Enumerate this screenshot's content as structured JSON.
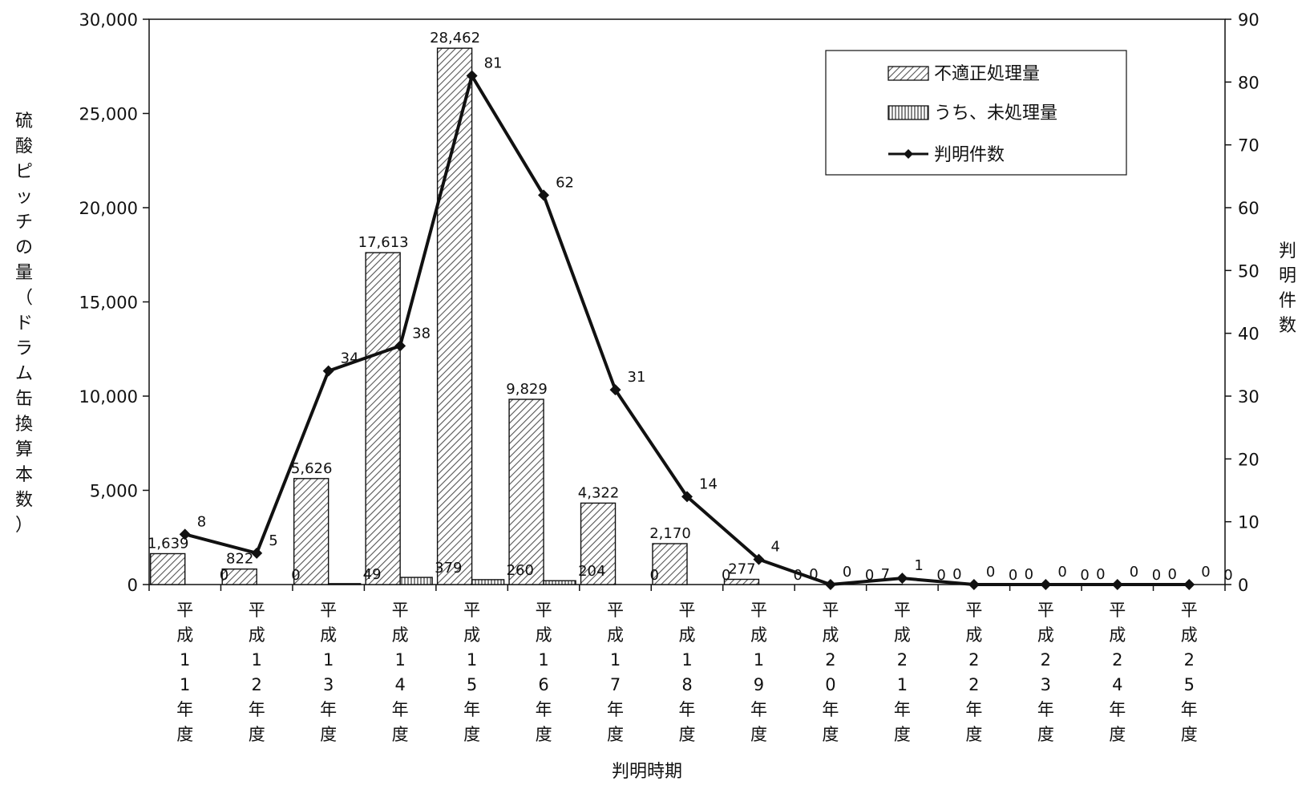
{
  "chart_data": {
    "type": "bar",
    "categories": [
      "平成11年度",
      "平成12年度",
      "平成13年度",
      "平成14年度",
      "平成15年度",
      "平成16年度",
      "平成17年度",
      "平成18年度",
      "平成19年度",
      "平成20年度",
      "平成21年度",
      "平成22年度",
      "平成23年度",
      "平成24年度",
      "平成25年度"
    ],
    "series": [
      {
        "name": "不適正処理量",
        "type": "bar",
        "axis": "left",
        "pattern": "diagonal-hatch",
        "values": [
          1639,
          822,
          5626,
          17613,
          28462,
          9829,
          4322,
          2170,
          277,
          0,
          7,
          0,
          0,
          0,
          0
        ],
        "labels": [
          "1,639",
          "822",
          "5,626",
          "17,613",
          "28,462",
          "9,829",
          "4,322",
          "2,170",
          "277",
          "0",
          "7",
          "0",
          "0",
          "0",
          "0"
        ]
      },
      {
        "name": "うち、未処理量",
        "type": "bar",
        "axis": "left",
        "pattern": "vertical-hatch",
        "values": [
          0,
          0,
          49,
          379,
          260,
          204,
          0,
          0,
          0,
          0,
          0,
          0,
          0,
          0,
          0
        ],
        "labels": [
          "0",
          "0",
          "49",
          "379",
          "260",
          "204",
          "0",
          "0",
          "0",
          "0",
          "0",
          "0",
          "0",
          "0",
          "0"
        ]
      },
      {
        "name": "判明件数",
        "type": "line",
        "axis": "right",
        "marker": "diamond",
        "values": [
          8,
          5,
          34,
          38,
          81,
          62,
          31,
          14,
          4,
          0,
          1,
          0,
          0,
          0,
          0
        ],
        "labels": [
          "8",
          "5",
          "34",
          "38",
          "81",
          "62",
          "31",
          "14",
          "4",
          "0",
          "1",
          "0",
          "0",
          "0",
          "0"
        ]
      }
    ],
    "xlabel": "判明時期",
    "ylabel": "硫酸ピッチの量（ドラム缶換算本数）",
    "y2label": "判明件数",
    "ylim": [
      0,
      30000
    ],
    "y2lim": [
      0,
      90
    ],
    "yticks": [
      "0",
      "5,000",
      "10,000",
      "15,000",
      "20,000",
      "25,000",
      "30,000"
    ],
    "y2ticks": [
      "0",
      "10",
      "20",
      "30",
      "40",
      "50",
      "60",
      "70",
      "80",
      "90"
    ],
    "legend_position": "top-right",
    "grid": false,
    "colors": {
      "line": "#111111",
      "bar_fill": "#ffffff",
      "hatch": "#666666",
      "axis": "#111111"
    }
  }
}
